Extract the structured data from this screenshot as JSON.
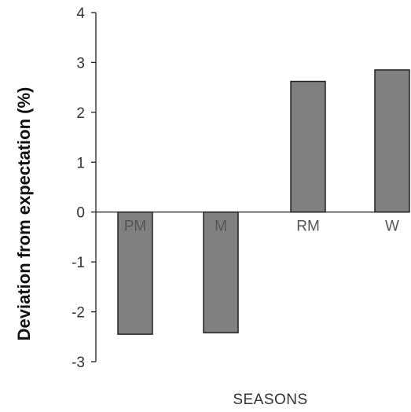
{
  "chart_data": {
    "type": "bar",
    "categories": [
      "PM",
      "M",
      "RM",
      "W"
    ],
    "values": [
      -2.45,
      -2.42,
      2.62,
      2.85
    ],
    "xlabel": "SEASONS",
    "ylabel": "Deviation from expectation (%)",
    "ylim": [
      -3,
      4
    ],
    "yticks": [
      "4",
      "3",
      "2",
      "1",
      "0",
      "-1",
      "-2",
      "-3"
    ],
    "grid": false,
    "bar_color": "#808080",
    "bar_edge_color": "#222222"
  }
}
